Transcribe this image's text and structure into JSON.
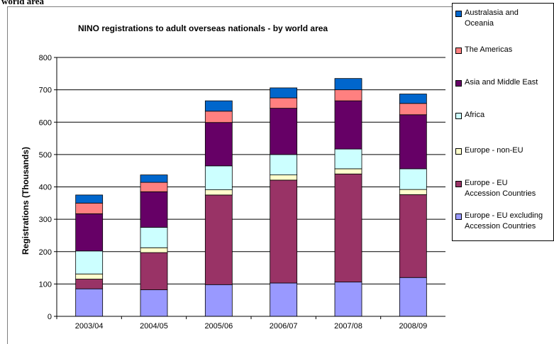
{
  "page_fragment": "world area",
  "chart_data": {
    "type": "bar",
    "stacked": true,
    "title": "NINO registrations to adult overseas nationals - by world area",
    "xlabel": "",
    "ylabel": "Registrations (Thousands)",
    "ylim": [
      0,
      800
    ],
    "yticks": [
      "0",
      "100",
      "200",
      "300",
      "400",
      "500",
      "600",
      "700",
      "800"
    ],
    "grid": true,
    "legend_position": "right",
    "categories": [
      "2003/04",
      "2004/05",
      "2005/06",
      "2006/07",
      "2007/08",
      "2008/09"
    ],
    "series": [
      {
        "name": "Europe - EU excluding\nAccession Countries",
        "color": "#9999ff",
        "values": [
          85,
          82,
          98,
          103,
          106,
          120
        ]
      },
      {
        "name": "Europe - EU\nAccession Countries",
        "color": "#993366",
        "values": [
          30,
          115,
          277,
          318,
          334,
          256
        ]
      },
      {
        "name": "Europe - non-EU",
        "color": "#ffffcc",
        "values": [
          16,
          15,
          16,
          16,
          16,
          16
        ]
      },
      {
        "name": "Africa",
        "color": "#ccffff",
        "values": [
          71,
          63,
          74,
          63,
          61,
          64
        ]
      },
      {
        "name": "Asia and Middle East",
        "color": "#660066",
        "values": [
          115,
          110,
          134,
          143,
          149,
          167
        ]
      },
      {
        "name": "The Americas",
        "color": "#ff8080",
        "values": [
          33,
          29,
          35,
          32,
          34,
          35
        ]
      },
      {
        "name": "Australasia and\nOceania",
        "color": "#0066cc",
        "values": [
          25,
          23,
          32,
          31,
          35,
          29
        ]
      }
    ]
  }
}
